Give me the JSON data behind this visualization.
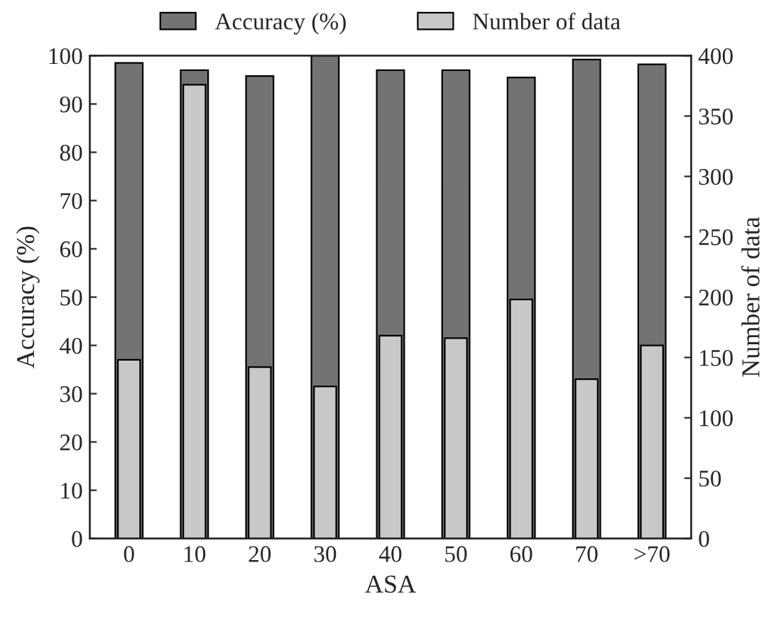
{
  "chart_data": {
    "type": "bar",
    "xlabel": "ASA",
    "ylabel": "Accuracy (%)",
    "y2label": "Number of data",
    "categories": [
      "0",
      "10",
      "20",
      "30",
      "40",
      "50",
      "60",
      "70",
      ">70"
    ],
    "series": [
      {
        "name": "Accuracy (%)",
        "color": "#737373",
        "values": [
          98.5,
          97,
          95.8,
          100,
          97,
          97,
          95.5,
          99.2,
          98.2
        ]
      },
      {
        "name": "Number of data",
        "color": "#c8c8c8",
        "axis": "y2",
        "values": [
          148,
          376,
          142,
          126,
          168,
          166,
          198,
          132,
          160
        ]
      }
    ],
    "ylim": [
      0,
      100
    ],
    "yticks": [
      0,
      10,
      20,
      30,
      40,
      50,
      60,
      70,
      80,
      90,
      100
    ],
    "y2lim": [
      0,
      400
    ],
    "y2ticks": [
      0,
      50,
      100,
      150,
      200,
      250,
      300,
      350,
      400
    ],
    "legend": "top",
    "grid": false
  }
}
